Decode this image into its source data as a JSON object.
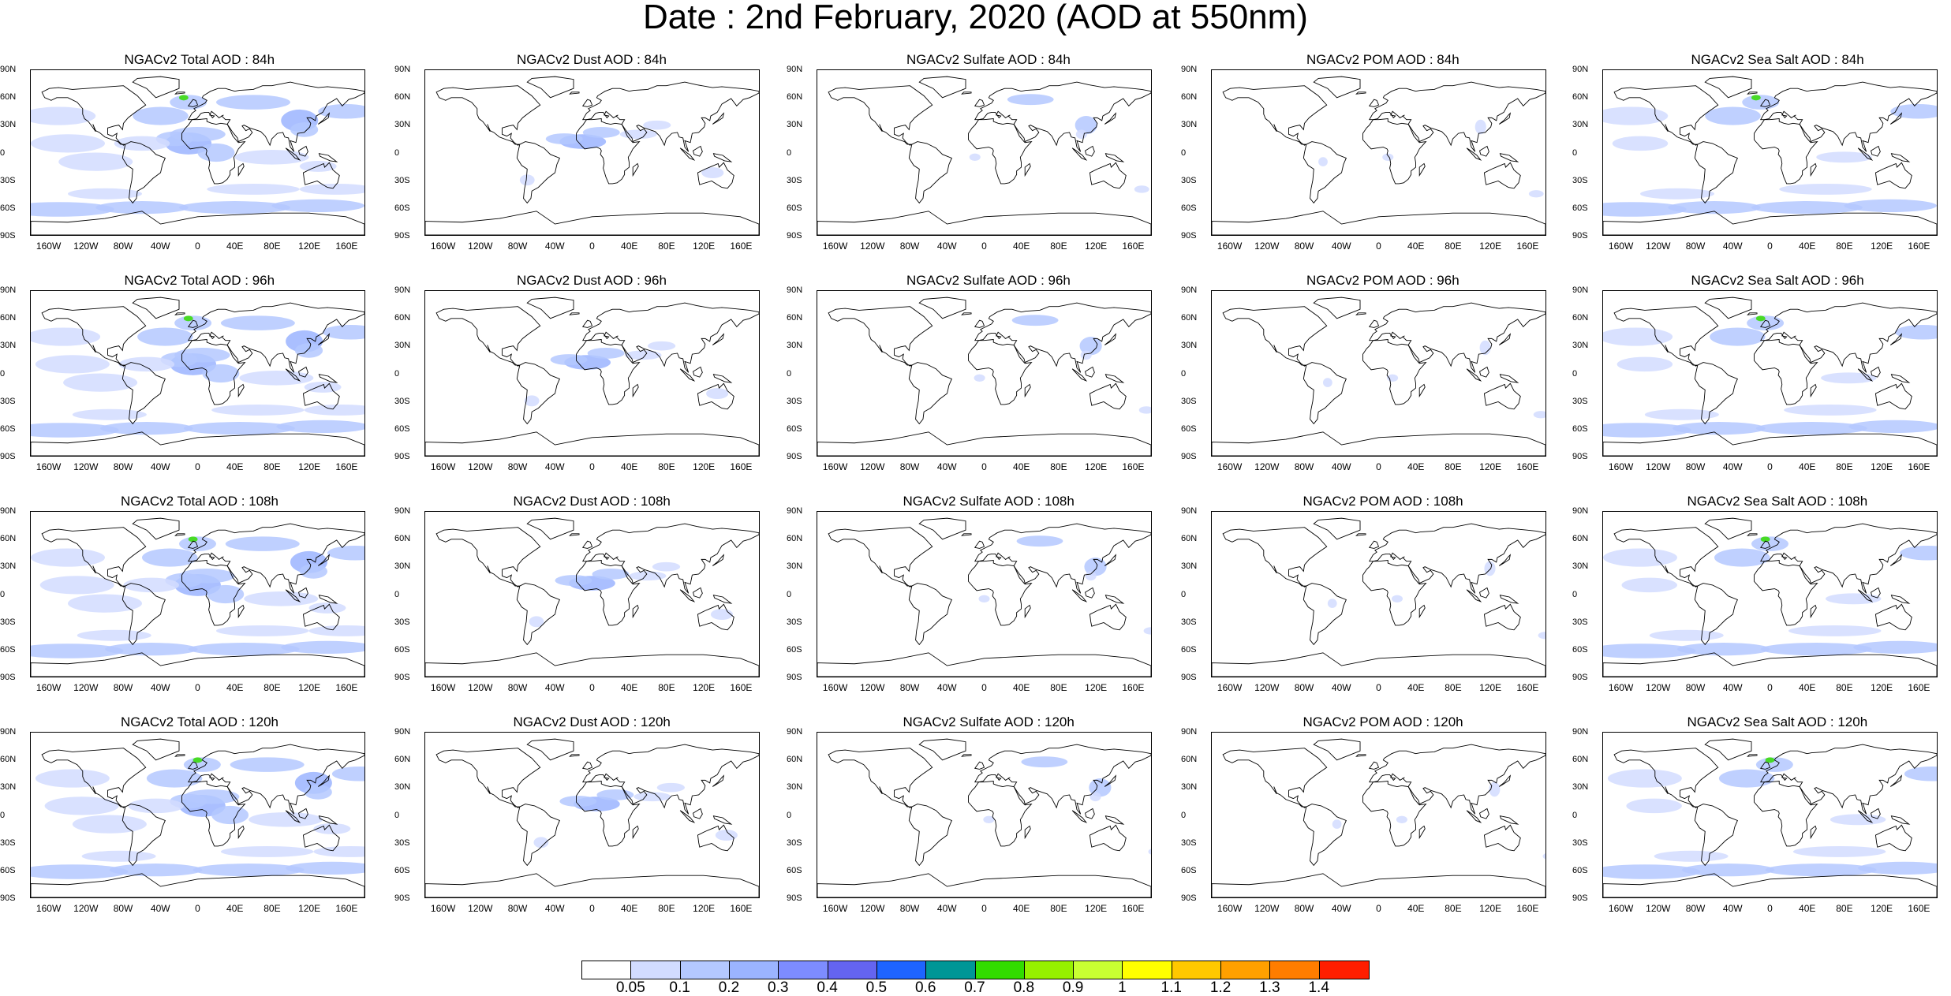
{
  "title": "Date : 2nd February, 2020 (AOD at 550nm)",
  "y_ticks": [
    "90N",
    "60N",
    "30N",
    "0",
    "30S",
    "60S",
    "90S"
  ],
  "x_ticks": [
    "160W",
    "120W",
    "80W",
    "40W",
    "0",
    "40E",
    "80E",
    "120E",
    "160E"
  ],
  "panels": [
    {
      "title": "NGACv2 Total AOD : 84h",
      "species": "total",
      "hour": 84
    },
    {
      "title": "NGACv2 Dust AOD : 84h",
      "species": "dust",
      "hour": 84
    },
    {
      "title": "NGACv2 Sulfate AOD : 84h",
      "species": "sulfate",
      "hour": 84
    },
    {
      "title": "NGACv2 POM AOD : 84h",
      "species": "pom",
      "hour": 84
    },
    {
      "title": "NGACv2 Sea Salt AOD : 84h",
      "species": "seasalt",
      "hour": 84
    },
    {
      "title": "NGACv2 Total AOD : 96h",
      "species": "total",
      "hour": 96
    },
    {
      "title": "NGACv2 Dust AOD : 96h",
      "species": "dust",
      "hour": 96
    },
    {
      "title": "NGACv2 Sulfate AOD : 96h",
      "species": "sulfate",
      "hour": 96
    },
    {
      "title": "NGACv2 POM AOD : 96h",
      "species": "pom",
      "hour": 96
    },
    {
      "title": "NGACv2 Sea Salt AOD : 96h",
      "species": "seasalt",
      "hour": 96
    },
    {
      "title": "NGACv2 Total AOD : 108h",
      "species": "total",
      "hour": 108
    },
    {
      "title": "NGACv2 Dust AOD : 108h",
      "species": "dust",
      "hour": 108
    },
    {
      "title": "NGACv2 Sulfate AOD : 108h",
      "species": "sulfate",
      "hour": 108
    },
    {
      "title": "NGACv2 POM AOD : 108h",
      "species": "pom",
      "hour": 108
    },
    {
      "title": "NGACv2 Sea Salt AOD : 108h",
      "species": "seasalt",
      "hour": 108
    },
    {
      "title": "NGACv2 Total AOD : 120h",
      "species": "total",
      "hour": 120
    },
    {
      "title": "NGACv2 Dust AOD : 120h",
      "species": "dust",
      "hour": 120
    },
    {
      "title": "NGACv2 Sulfate AOD : 120h",
      "species": "sulfate",
      "hour": 120
    },
    {
      "title": "NGACv2 POM AOD : 120h",
      "species": "pom",
      "hour": 120
    },
    {
      "title": "NGACv2 Sea Salt  AOD : 120h",
      "species": "seasalt",
      "hour": 120
    }
  ],
  "colorbar": {
    "levels": [
      "0.05",
      "0.1",
      "0.2",
      "0.3",
      "0.4",
      "0.5",
      "0.6",
      "0.7",
      "0.8",
      "0.9",
      "1",
      "1.1",
      "1.2",
      "1.3",
      "1.4"
    ],
    "colors": [
      "#ffffff",
      "#d2dcff",
      "#b4c8ff",
      "#9bb4ff",
      "#7d8cff",
      "#6464f0",
      "#1e64ff",
      "#009696",
      "#32dc00",
      "#96f000",
      "#c8ff32",
      "#ffff00",
      "#ffc800",
      "#ffa000",
      "#ff7d00",
      "#ff1e00"
    ]
  }
}
